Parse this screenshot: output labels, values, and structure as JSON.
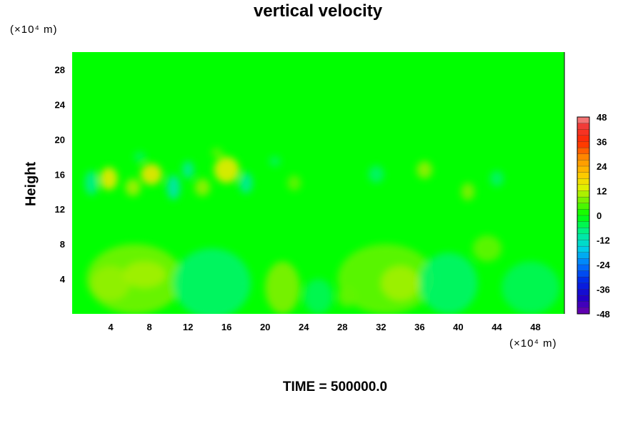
{
  "chart_data": {
    "type": "heatmap",
    "title": "vertical velocity",
    "ylabel": "Height",
    "y_unit": "(×10⁴ m)",
    "x_unit": "(×10⁴ m)",
    "x_range": [
      0,
      51
    ],
    "y_range": [
      0,
      30
    ],
    "x_ticks": [
      "4",
      "8",
      "12",
      "16",
      "20",
      "24",
      "28",
      "32",
      "36",
      "40",
      "44",
      "48"
    ],
    "y_ticks": [
      "4",
      "8",
      "12",
      "16",
      "20",
      "24",
      "28"
    ],
    "colorbar": {
      "min": -48,
      "max": 48,
      "labels": [
        "48",
        "36",
        "24",
        "12",
        "0",
        "-12",
        "-24",
        "-36",
        "-48"
      ]
    },
    "background_value": 0,
    "features": [
      {
        "x": 6.5,
        "y": 4.0,
        "rx": 5.0,
        "ry": 4.0,
        "value": 7
      },
      {
        "x": 4.0,
        "y": 3.5,
        "rx": 2.0,
        "ry": 2.0,
        "value": 9
      },
      {
        "x": 7.5,
        "y": 4.5,
        "rx": 2.2,
        "ry": 1.5,
        "value": 10
      },
      {
        "x": 14.5,
        "y": 3.5,
        "rx": 4.0,
        "ry": 4.0,
        "value": -6
      },
      {
        "x": 21.8,
        "y": 3.0,
        "rx": 1.8,
        "ry": 3.0,
        "value": 8
      },
      {
        "x": 25.5,
        "y": 2.0,
        "rx": 1.5,
        "ry": 2.0,
        "value": -5
      },
      {
        "x": 28.5,
        "y": 2.0,
        "rx": 1.0,
        "ry": 1.2,
        "value": 6
      },
      {
        "x": 32.5,
        "y": 4.0,
        "rx": 5.0,
        "ry": 4.0,
        "value": 6
      },
      {
        "x": 34.0,
        "y": 3.5,
        "rx": 2.0,
        "ry": 2.0,
        "value": 10
      },
      {
        "x": 39.0,
        "y": 3.5,
        "rx": 3.0,
        "ry": 3.5,
        "value": -6
      },
      {
        "x": 43.0,
        "y": 7.5,
        "rx": 1.5,
        "ry": 1.5,
        "value": 6
      },
      {
        "x": 47.5,
        "y": 3.0,
        "rx": 3.0,
        "ry": 3.0,
        "value": -5
      },
      {
        "x": 3.8,
        "y": 15.5,
        "rx": 0.9,
        "ry": 1.3,
        "value": 15
      },
      {
        "x": 8.2,
        "y": 16.0,
        "rx": 1.1,
        "ry": 1.2,
        "value": 16
      },
      {
        "x": 16.0,
        "y": 16.5,
        "rx": 1.3,
        "ry": 1.5,
        "value": 15
      },
      {
        "x": 6.3,
        "y": 14.5,
        "rx": 0.8,
        "ry": 1.0,
        "value": 10
      },
      {
        "x": 10.5,
        "y": 14.5,
        "rx": 0.7,
        "ry": 1.4,
        "value": -11
      },
      {
        "x": 13.5,
        "y": 14.5,
        "rx": 0.8,
        "ry": 1.0,
        "value": 9
      },
      {
        "x": 12.0,
        "y": 16.5,
        "rx": 0.6,
        "ry": 1.0,
        "value": -9
      },
      {
        "x": 18.0,
        "y": 15.0,
        "rx": 0.7,
        "ry": 1.2,
        "value": -9
      },
      {
        "x": 2.0,
        "y": 15.0,
        "rx": 0.7,
        "ry": 1.4,
        "value": -8
      },
      {
        "x": 36.5,
        "y": 16.5,
        "rx": 0.8,
        "ry": 1.0,
        "value": 9
      },
      {
        "x": 41.0,
        "y": 14.0,
        "rx": 0.7,
        "ry": 1.0,
        "value": 8
      },
      {
        "x": 31.5,
        "y": 16.0,
        "rx": 0.8,
        "ry": 1.0,
        "value": -6
      },
      {
        "x": 23.0,
        "y": 15.0,
        "rx": 0.7,
        "ry": 0.9,
        "value": 6
      },
      {
        "x": 44.0,
        "y": 15.5,
        "rx": 0.7,
        "ry": 0.9,
        "value": -6
      },
      {
        "x": 7.0,
        "y": 18.0,
        "rx": 0.6,
        "ry": 0.6,
        "value": -5
      },
      {
        "x": 15.0,
        "y": 18.5,
        "rx": 0.6,
        "ry": 0.5,
        "value": 6
      },
      {
        "x": 21.0,
        "y": 17.5,
        "rx": 0.6,
        "ry": 0.6,
        "value": -5
      }
    ],
    "time_label": "TIME = 500000.0",
    "grid": false
  }
}
